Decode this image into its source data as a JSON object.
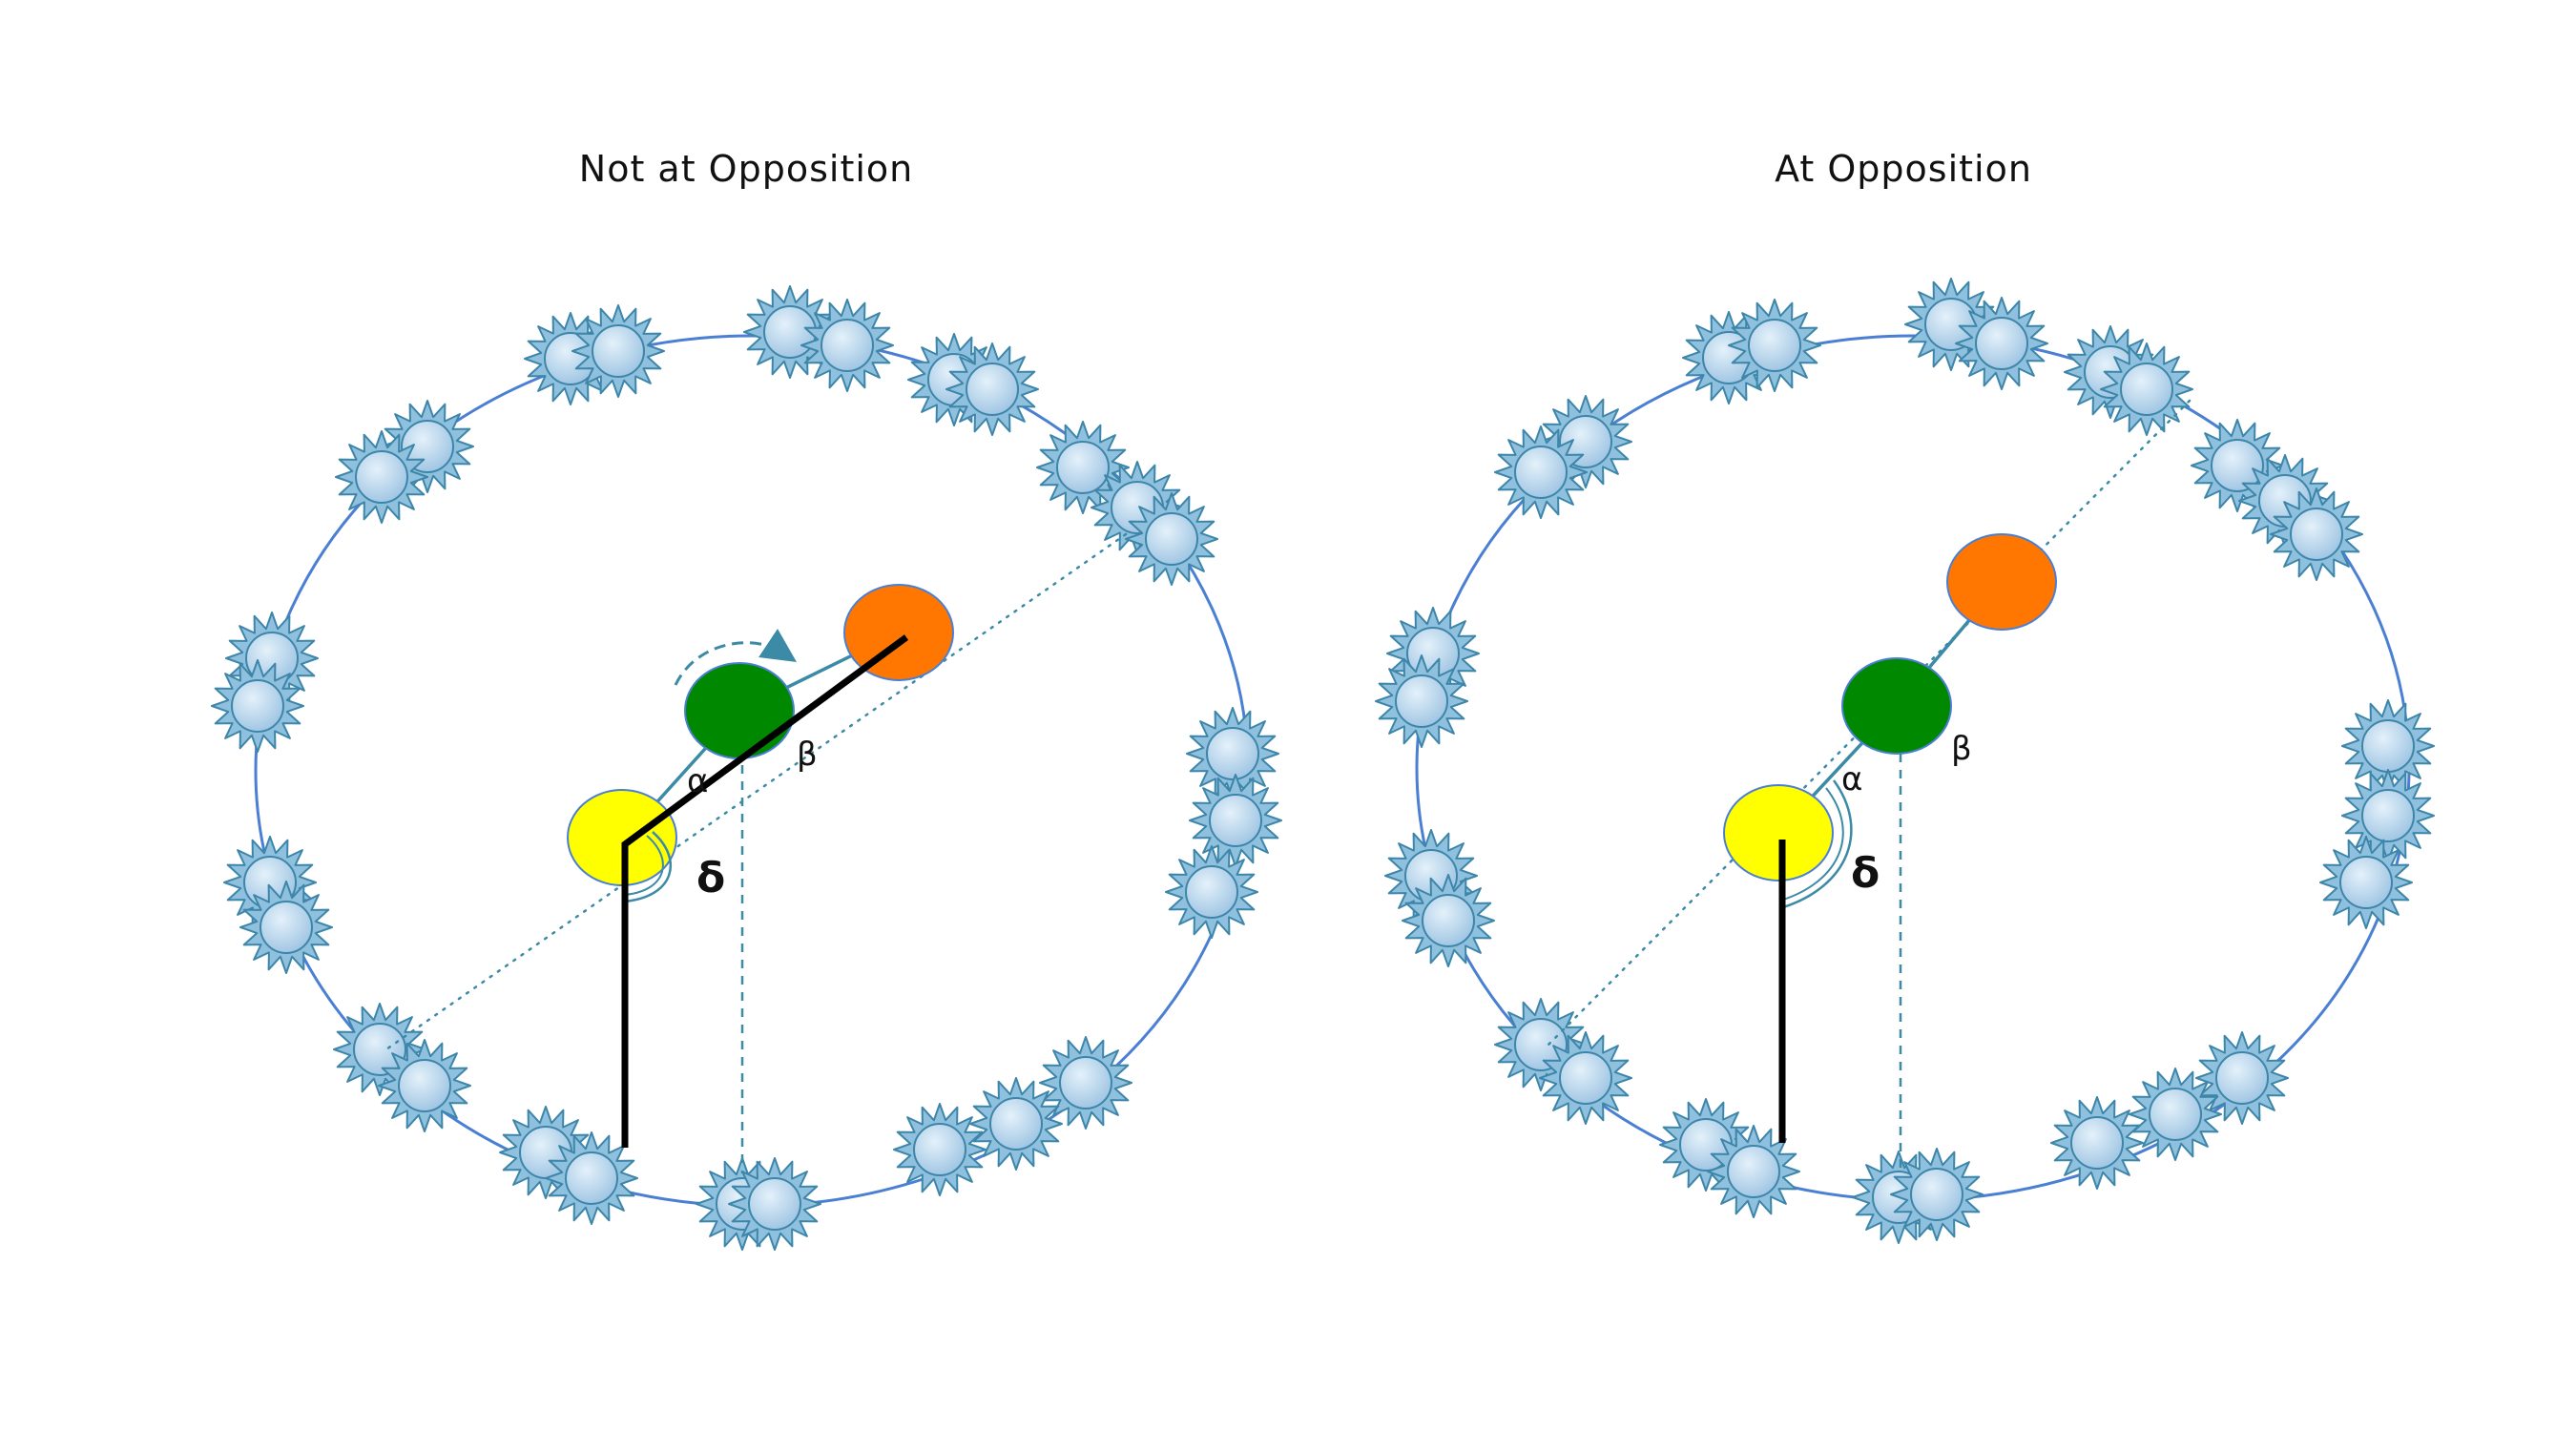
{
  "colors": {
    "background": "#ffffff",
    "orbit": "#4a7fd4",
    "star_fill": "#b7d3ea",
    "star_stroke": "#3d86aa",
    "sun": "#ffff00",
    "earth": "#008800",
    "planet": "#ff7700",
    "line_teal": "#3b8aa6",
    "line_black": "#000000"
  },
  "icons": {
    "star": "star-burst-icon",
    "motion_arrow": "curved-arrow-icon"
  },
  "panels": [
    {
      "id": "not-opposition",
      "title": "Not at Opposition",
      "labels": {
        "alpha": "α",
        "beta": "β",
        "delta": "δ"
      },
      "show_motion_arrow": true
    },
    {
      "id": "at-opposition",
      "title": "At Opposition",
      "labels": {
        "alpha": "α",
        "beta": "β",
        "delta": "δ"
      },
      "show_motion_arrow": false
    }
  ]
}
